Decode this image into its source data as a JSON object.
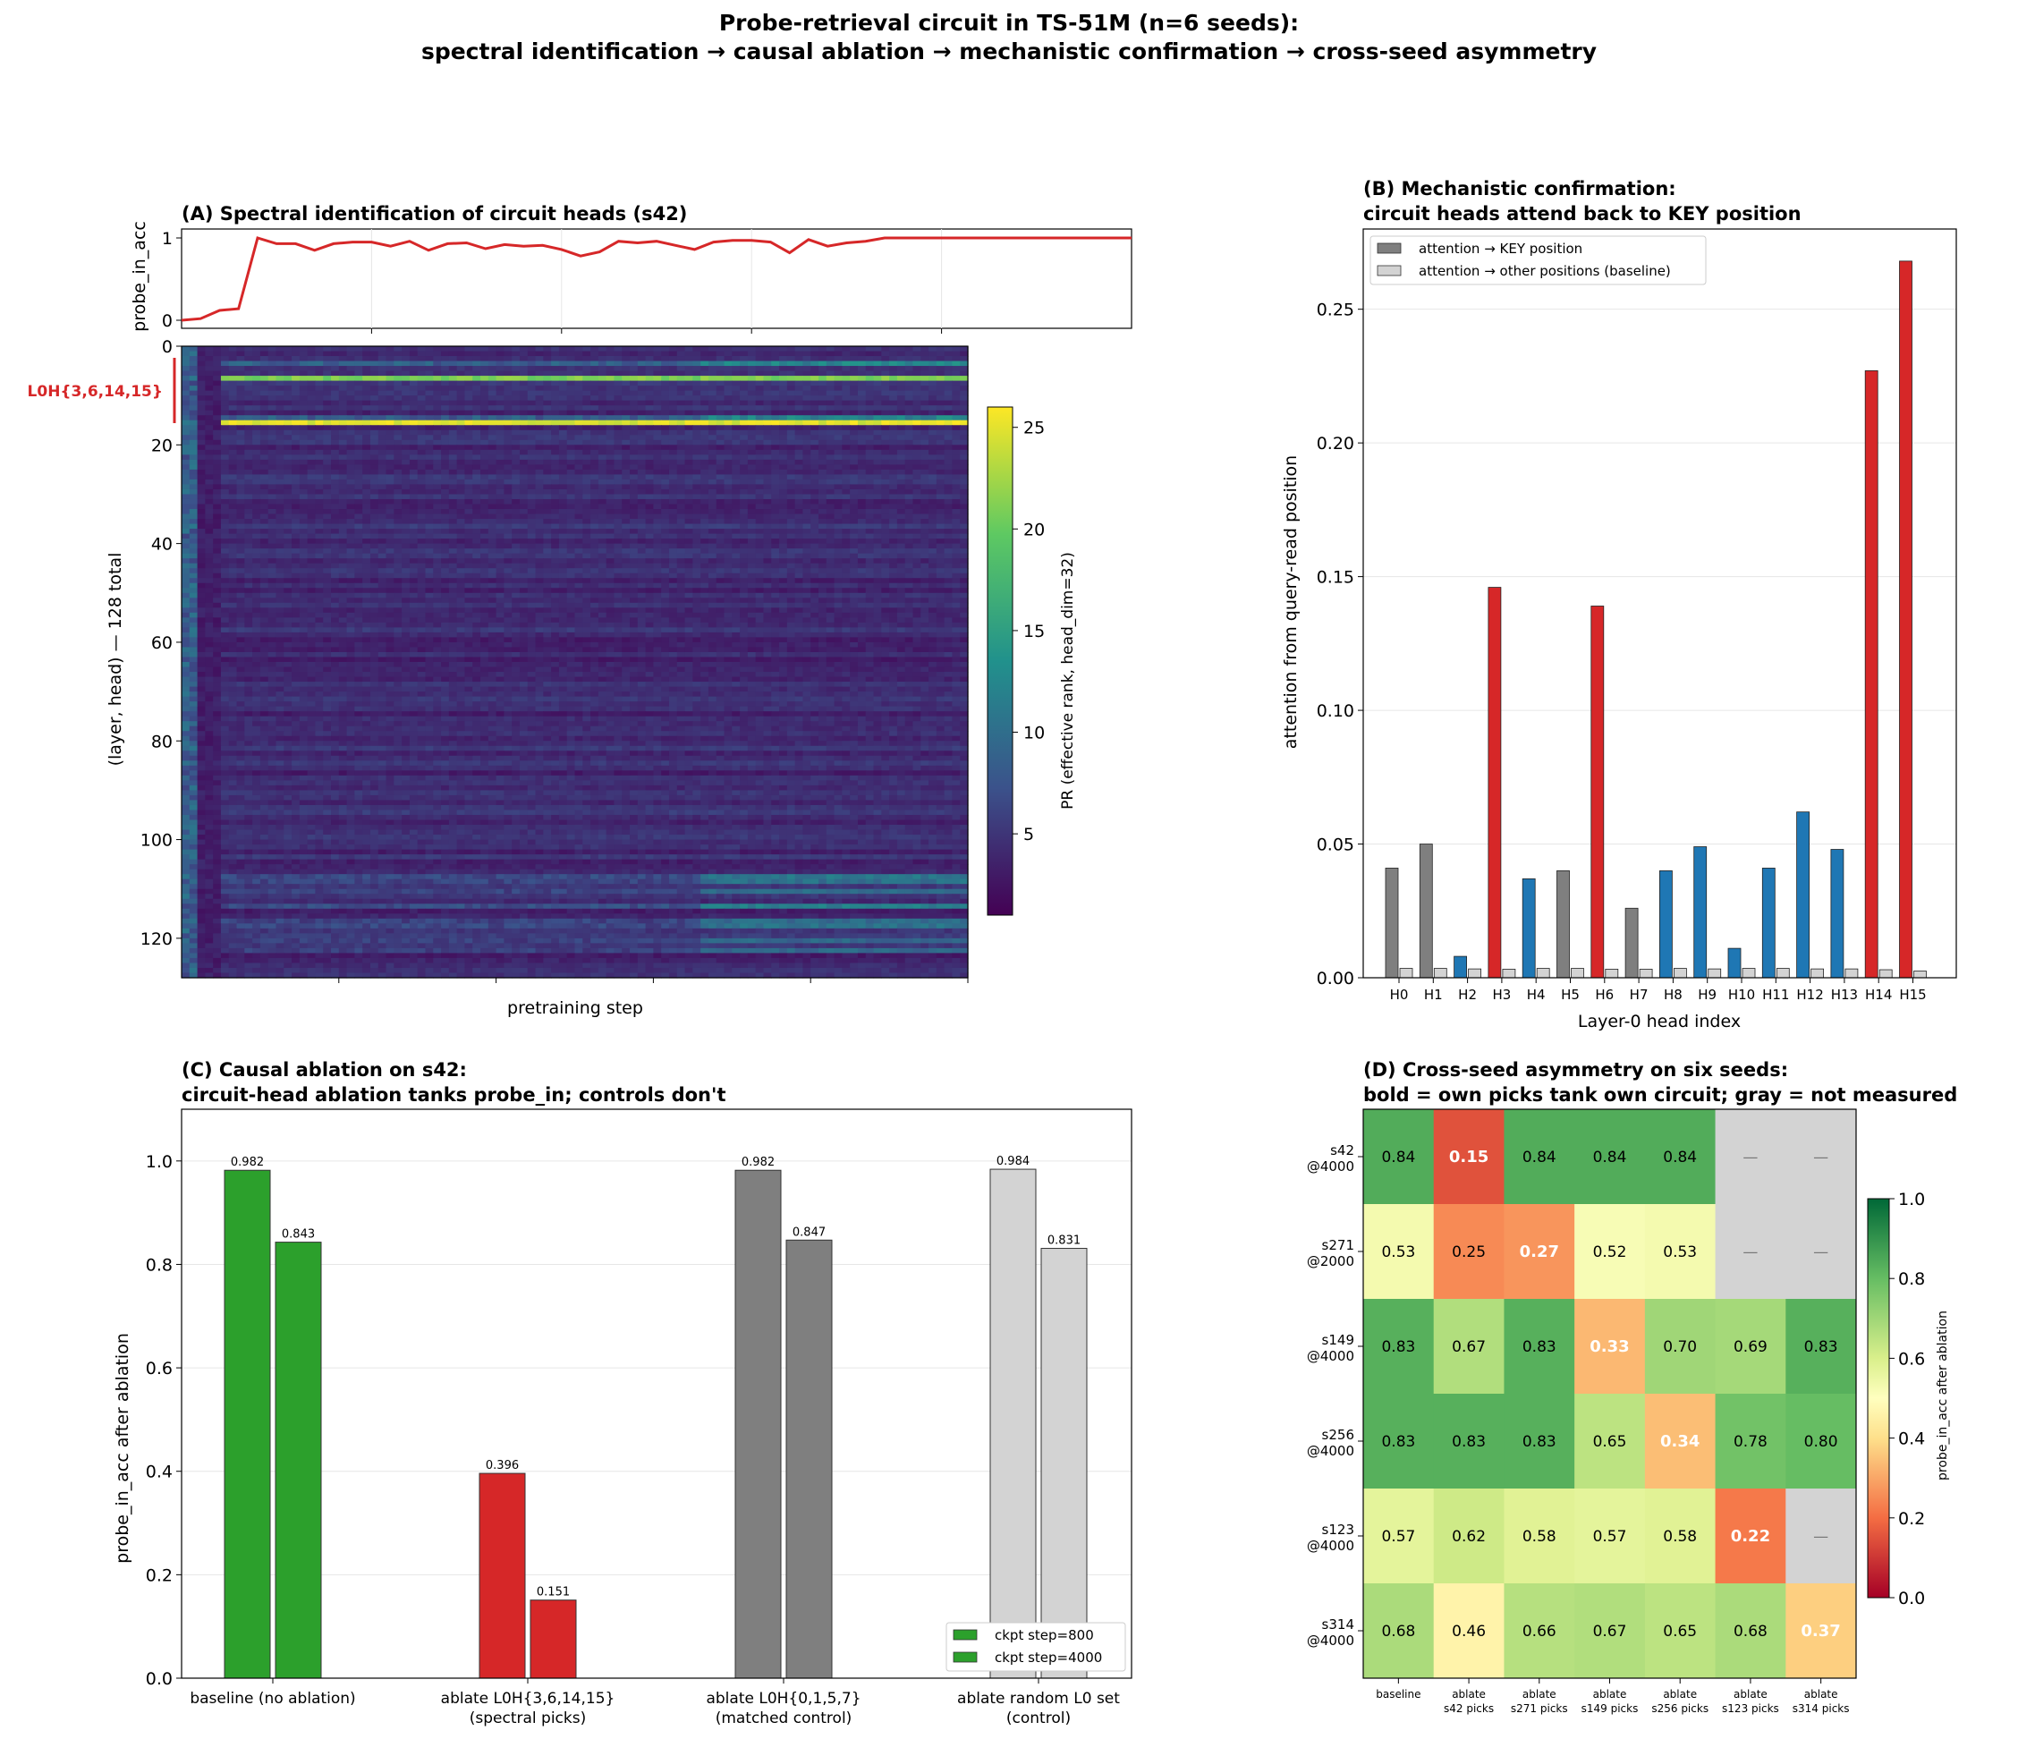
{
  "figure": {
    "title_line1": "Probe-retrieval circuit in TS-51M (n=6 seeds):",
    "title_line2": "spectral identification → causal ablation → mechanistic confirmation → cross-seed asymmetry"
  },
  "colors": {
    "circuit": "#d62728",
    "blue": "#1f77b4",
    "gray": "#7f7f7f",
    "light_gray": "#d3d3d3",
    "green": "#2ca02c"
  },
  "chart_data": [
    {
      "panel": "A",
      "type": "heatmap",
      "title": "(A) Spectral identification of circuit heads (s42)",
      "top_ylabel": "probe_in_acc",
      "top_yticks": [
        "0",
        "1"
      ],
      "xlabel": "pretraining step",
      "ylabel": "(layer, head) — 128 total",
      "yticks": [
        "0",
        "20",
        "40",
        "60",
        "80",
        "100",
        "120"
      ],
      "ytick_values": [
        0,
        20,
        40,
        60,
        80,
        100,
        120
      ],
      "rows": 128,
      "circuit_label": "L0H{3,6,14,15}",
      "colorbar_label": "PR (effective rank, head_dim=32)",
      "colorbar_ticks": [
        "5",
        "10",
        "15",
        "20",
        "25"
      ],
      "colorbar_tick_values": [
        5,
        10,
        15,
        20,
        25
      ],
      "colorbar_range": [
        1,
        26
      ],
      "probe_in_acc_curve": [
        0.0,
        0.02,
        0.12,
        0.14,
        1.0,
        0.93,
        0.93,
        0.85,
        0.93,
        0.95,
        0.95,
        0.9,
        0.96,
        0.85,
        0.93,
        0.94,
        0.87,
        0.92,
        0.9,
        0.91,
        0.86,
        0.78,
        0.83,
        0.96,
        0.94,
        0.96,
        0.91,
        0.86,
        0.95,
        0.97,
        0.97,
        0.95,
        0.82,
        0.98,
        0.9,
        0.94,
        0.96,
        1.0,
        1.0,
        1.0,
        1.0,
        1.0,
        1.0,
        1.0,
        1.0,
        1.0,
        1.0,
        1.0,
        1.0,
        1.0,
        1.0
      ]
    },
    {
      "panel": "B",
      "type": "bar",
      "title_line1": "(B) Mechanistic confirmation:",
      "title_line2": "circuit heads attend back to KEY position",
      "xlabel": "Layer-0 head index",
      "ylabel": "attention from query-read position",
      "ylim": [
        0,
        0.28
      ],
      "yticks": [
        "0.00",
        "0.05",
        "0.10",
        "0.15",
        "0.20",
        "0.25"
      ],
      "ytick_values": [
        0,
        0.05,
        0.1,
        0.15,
        0.2,
        0.25
      ],
      "legend": [
        "attention → KEY position",
        "attention → other positions (baseline)"
      ],
      "categories": [
        "H0",
        "H1",
        "H2",
        "H3",
        "H4",
        "H5",
        "H6",
        "H7",
        "H8",
        "H9",
        "H10",
        "H11",
        "H12",
        "H13",
        "H14",
        "H15"
      ],
      "series": [
        {
          "name": "attention → KEY position",
          "values": [
            0.041,
            0.05,
            0.008,
            0.146,
            0.037,
            0.04,
            0.139,
            0.026,
            0.04,
            0.049,
            0.011,
            0.041,
            0.062,
            0.048,
            0.227,
            0.268
          ],
          "colors": [
            "gray",
            "gray",
            "blue",
            "circuit",
            "blue",
            "gray",
            "circuit",
            "gray",
            "blue",
            "blue",
            "blue",
            "blue",
            "blue",
            "blue",
            "circuit",
            "circuit"
          ]
        },
        {
          "name": "attention → other positions (baseline)",
          "values": [
            0.0035,
            0.0035,
            0.0033,
            0.0032,
            0.0035,
            0.0035,
            0.0032,
            0.0032,
            0.0035,
            0.0033,
            0.0035,
            0.0035,
            0.0033,
            0.0033,
            0.003,
            0.0025
          ]
        }
      ]
    },
    {
      "panel": "C",
      "type": "bar",
      "title_line1": "(C) Causal ablation on s42:",
      "title_line2": "circuit-head ablation tanks probe_in; controls don't",
      "ylabel": "probe_in_acc after ablation",
      "ylim": [
        0,
        1.1
      ],
      "yticks": [
        "0.0",
        "0.2",
        "0.4",
        "0.6",
        "0.8",
        "1.0"
      ],
      "ytick_values": [
        0,
        0.2,
        0.4,
        0.6,
        0.8,
        1.0
      ],
      "categories": [
        {
          "line1": "baseline (no ablation)",
          "line2": ""
        },
        {
          "line1": "ablate L0H{3,6,14,15}",
          "line2": "(spectral picks)"
        },
        {
          "line1": "ablate L0H{0,1,5,7}",
          "line2": "(matched control)"
        },
        {
          "line1": "ablate random L0 set",
          "line2": "(control)"
        }
      ],
      "group_colors": [
        "green",
        "circuit",
        "gray",
        "light_gray"
      ],
      "series": [
        {
          "name": "ckpt step=800",
          "values": [
            0.982,
            0.396,
            0.982,
            0.984
          ],
          "labels": [
            "0.982",
            "0.396",
            "0.982",
            "0.984"
          ]
        },
        {
          "name": "ckpt step=4000",
          "values": [
            0.843,
            0.151,
            0.847,
            0.831
          ],
          "labels": [
            "0.843",
            "0.151",
            "0.847",
            "0.831"
          ]
        }
      ],
      "legend": [
        "ckpt step=800",
        "ckpt step=4000"
      ]
    },
    {
      "panel": "D",
      "type": "heatmap",
      "title_line1": "(D) Cross-seed asymmetry on six seeds:",
      "title_line2": "bold = own picks tank own circuit; gray = not measured",
      "rows": [
        {
          "line1": "s42",
          "line2": "@4000"
        },
        {
          "line1": "s271",
          "line2": "@2000"
        },
        {
          "line1": "s149",
          "line2": "@4000"
        },
        {
          "line1": "s256",
          "line2": "@4000"
        },
        {
          "line1": "s123",
          "line2": "@4000"
        },
        {
          "line1": "s314",
          "line2": "@4000"
        }
      ],
      "columns": [
        {
          "line1": "baseline",
          "line2": ""
        },
        {
          "line1": "ablate",
          "line2": "s42 picks"
        },
        {
          "line1": "ablate",
          "line2": "s271 picks"
        },
        {
          "line1": "ablate",
          "line2": "s149 picks"
        },
        {
          "line1": "ablate",
          "line2": "s256 picks"
        },
        {
          "line1": "ablate",
          "line2": "s123 picks"
        },
        {
          "line1": "ablate",
          "line2": "s314 picks"
        }
      ],
      "values": [
        [
          0.84,
          0.15,
          0.84,
          0.84,
          0.84,
          null,
          null
        ],
        [
          0.53,
          0.25,
          0.27,
          0.52,
          0.53,
          null,
          null
        ],
        [
          0.83,
          0.67,
          0.83,
          0.33,
          0.7,
          0.69,
          0.83
        ],
        [
          0.83,
          0.83,
          0.83,
          0.65,
          0.34,
          0.78,
          0.8
        ],
        [
          0.57,
          0.62,
          0.58,
          0.57,
          0.58,
          0.22,
          null
        ],
        [
          0.68,
          0.46,
          0.66,
          0.67,
          0.65,
          0.68,
          0.37
        ]
      ],
      "cell_labels": [
        [
          "0.84",
          "0.15",
          "0.84",
          "0.84",
          "0.84",
          "—",
          "—"
        ],
        [
          "0.53",
          "0.25",
          "0.27",
          "0.52",
          "0.53",
          "—",
          "—"
        ],
        [
          "0.83",
          "0.67",
          "0.83",
          "0.33",
          "0.70",
          "0.69",
          "0.83"
        ],
        [
          "0.83",
          "0.83",
          "0.83",
          "0.65",
          "0.34",
          "0.78",
          "0.80"
        ],
        [
          "0.57",
          "0.62",
          "0.58",
          "0.57",
          "0.58",
          "0.22",
          "—"
        ],
        [
          "0.68",
          "0.46",
          "0.66",
          "0.67",
          "0.65",
          "0.68",
          "0.37"
        ]
      ],
      "bold_cells": [
        [
          0,
          1
        ],
        [
          1,
          2
        ],
        [
          2,
          3
        ],
        [
          3,
          4
        ],
        [
          4,
          5
        ],
        [
          5,
          6
        ]
      ],
      "colorbar_label": "probe_in_acc after ablation",
      "colorbar_ticks": [
        "0.0",
        "0.2",
        "0.4",
        "0.6",
        "0.8",
        "1.0"
      ],
      "colorbar_tick_values": [
        0,
        0.2,
        0.4,
        0.6,
        0.8,
        1.0
      ],
      "colorbar_range": [
        0,
        1
      ]
    }
  ]
}
